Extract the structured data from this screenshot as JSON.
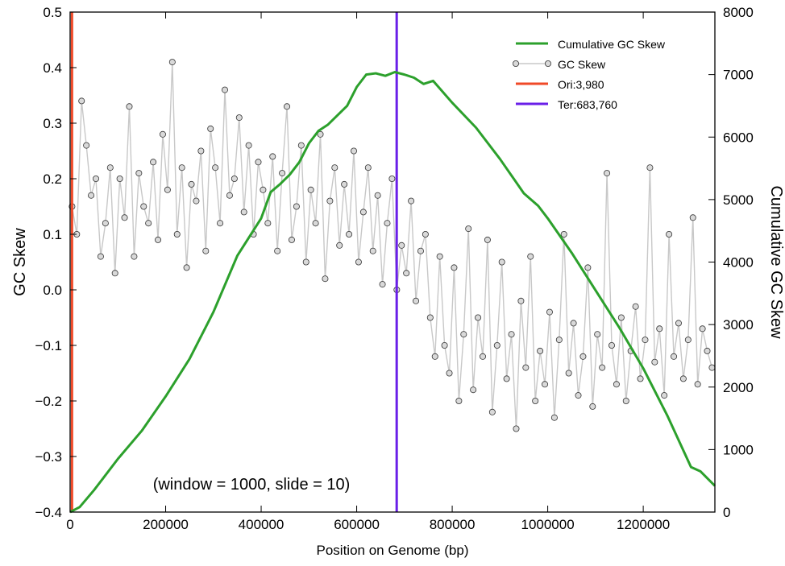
{
  "chart_data": {
    "type": "line",
    "xlabel": "Position on Genome (bp)",
    "ylabel": "GC Skew",
    "y2label": "Cumulative GC Skew",
    "annotation": "(window = 1000, slide = 10)",
    "xlim": [
      0,
      1350000
    ],
    "ylim": [
      -0.4,
      0.5
    ],
    "y2lim": [
      0,
      8000
    ],
    "xticks": [
      "0",
      "200000",
      "400000",
      "600000",
      "800000",
      "1000000",
      "1200000"
    ],
    "yticks": [
      "−0.4",
      "−0.3",
      "−0.2",
      "−0.1",
      "0.0",
      "0.1",
      "0.2",
      "0.3",
      "0.4",
      "0.5"
    ],
    "y2ticks": [
      "0",
      "1000",
      "2000",
      "3000",
      "4000",
      "5000",
      "6000",
      "7000",
      "8000"
    ],
    "grid": false,
    "legend_position": "top-right",
    "legend": [
      "Cumulative GC Skew",
      "GC Skew",
      "Ori:3,980",
      "Ter:683,760"
    ],
    "series": [
      {
        "name": "Cumulative GC Skew",
        "axis": "right",
        "color": "#2ca02c",
        "x": [
          0,
          20000,
          50000,
          100000,
          150000,
          200000,
          250000,
          300000,
          350000,
          400000,
          420000,
          440000,
          460000,
          480000,
          500000,
          520000,
          540000,
          560000,
          580000,
          600000,
          620000,
          640000,
          660000,
          680000,
          700000,
          720000,
          740000,
          760000,
          800000,
          850000,
          900000,
          950000,
          980000,
          1000000,
          1050000,
          1100000,
          1150000,
          1200000,
          1250000,
          1300000,
          1320000,
          1350000
        ],
        "y": [
          0,
          80,
          350,
          850,
          1300,
          1850,
          2450,
          3200,
          4100,
          4700,
          5120,
          5250,
          5400,
          5600,
          5900,
          6100,
          6200,
          6350,
          6500,
          6800,
          7000,
          7020,
          6980,
          7040,
          7000,
          6950,
          6850,
          6900,
          6550,
          6150,
          5650,
          5100,
          4900,
          4700,
          4150,
          3550,
          2950,
          2300,
          1550,
          720,
          650,
          420
        ]
      },
      {
        "name": "GC Skew",
        "axis": "left",
        "color": "#c8c8c8",
        "x": [
          4000,
          14000,
          24000,
          34000,
          44000,
          54000,
          64000,
          74000,
          84000,
          94000,
          104000,
          114000,
          124000,
          134000,
          144000,
          154000,
          164000,
          174000,
          184000,
          194000,
          204000,
          214000,
          224000,
          234000,
          244000,
          254000,
          264000,
          274000,
          284000,
          294000,
          304000,
          314000,
          324000,
          334000,
          344000,
          354000,
          364000,
          374000,
          384000,
          394000,
          404000,
          414000,
          424000,
          434000,
          444000,
          454000,
          464000,
          474000,
          484000,
          494000,
          504000,
          514000,
          524000,
          534000,
          544000,
          554000,
          564000,
          574000,
          584000,
          594000,
          604000,
          614000,
          624000,
          634000,
          644000,
          654000,
          664000,
          674000,
          684000,
          694000,
          704000,
          714000,
          724000,
          734000,
          744000,
          754000,
          764000,
          774000,
          784000,
          794000,
          804000,
          814000,
          824000,
          834000,
          844000,
          854000,
          864000,
          874000,
          884000,
          894000,
          904000,
          914000,
          924000,
          934000,
          944000,
          954000,
          964000,
          974000,
          984000,
          994000,
          1004000,
          1014000,
          1024000,
          1034000,
          1044000,
          1054000,
          1064000,
          1074000,
          1084000,
          1094000,
          1104000,
          1114000,
          1124000,
          1134000,
          1144000,
          1154000,
          1164000,
          1174000,
          1184000,
          1194000,
          1204000,
          1214000,
          1224000,
          1234000,
          1244000,
          1254000,
          1264000,
          1274000,
          1284000,
          1294000,
          1304000,
          1314000,
          1324000,
          1334000,
          1344000
        ],
        "y": [
          0.15,
          0.1,
          0.34,
          0.26,
          0.17,
          0.2,
          0.06,
          0.12,
          0.22,
          0.03,
          0.2,
          0.13,
          0.33,
          0.06,
          0.21,
          0.15,
          0.12,
          0.23,
          0.09,
          0.28,
          0.18,
          0.41,
          0.1,
          0.22,
          0.04,
          0.19,
          0.16,
          0.25,
          0.07,
          0.29,
          0.22,
          0.12,
          0.36,
          0.17,
          0.2,
          0.31,
          0.14,
          0.26,
          0.1,
          0.23,
          0.18,
          0.12,
          0.24,
          0.07,
          0.21,
          0.33,
          0.09,
          0.15,
          0.26,
          0.05,
          0.18,
          0.12,
          0.28,
          0.02,
          0.16,
          0.22,
          0.08,
          0.19,
          0.1,
          0.25,
          0.05,
          0.14,
          0.22,
          0.07,
          0.17,
          0.01,
          0.12,
          0.2,
          0.0,
          0.08,
          0.03,
          0.16,
          -0.02,
          0.07,
          0.1,
          -0.05,
          -0.12,
          0.06,
          -0.1,
          -0.15,
          0.04,
          -0.2,
          -0.08,
          0.11,
          -0.18,
          -0.05,
          -0.12,
          0.09,
          -0.22,
          -0.1,
          0.05,
          -0.16,
          -0.08,
          -0.25,
          -0.02,
          -0.14,
          0.06,
          -0.2,
          -0.11,
          -0.17,
          -0.04,
          -0.23,
          -0.09,
          0.1,
          -0.15,
          -0.06,
          -0.19,
          -0.12,
          0.04,
          -0.21,
          -0.08,
          -0.14,
          0.21,
          -0.1,
          -0.17,
          -0.05,
          -0.2,
          -0.11,
          -0.03,
          -0.16,
          -0.09,
          0.22,
          -0.13,
          -0.07,
          -0.19,
          0.1,
          -0.12,
          -0.06,
          -0.16,
          -0.09,
          0.13,
          -0.17,
          -0.07,
          -0.11,
          -0.14
        ]
      },
      {
        "name": "Ori:3,980",
        "axis": "left",
        "color": "#f04a28",
        "x": [
          3980,
          3980
        ],
        "y": [
          -0.4,
          0.5
        ]
      },
      {
        "name": "Ter:683,760",
        "axis": "left",
        "color": "#6a1fe8",
        "x": [
          683760,
          683760
        ],
        "y": [
          -0.4,
          0.5
        ]
      }
    ]
  }
}
